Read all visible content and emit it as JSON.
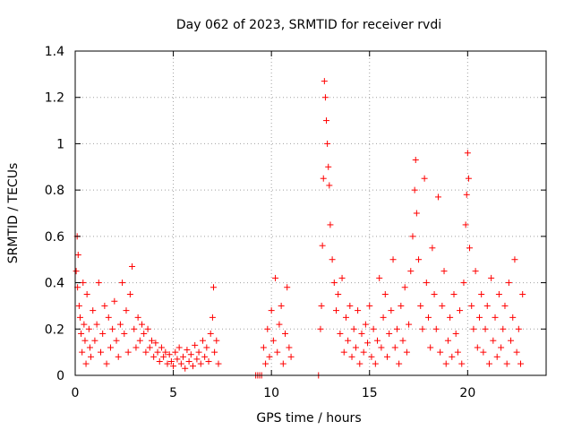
{
  "chart_data": {
    "type": "scatter",
    "title": "Day 062 of 2023, SRMTID for receiver rvdi",
    "xlabel": "GPS time / hours",
    "ylabel": "SRMTID / TECUs",
    "xlim": [
      0,
      24
    ],
    "ylim": [
      0,
      1.4
    ],
    "xticks": [
      0,
      5,
      10,
      15,
      20
    ],
    "xtick_labels": [
      "0",
      "5",
      "10",
      "15",
      "20"
    ],
    "yticks": [
      0,
      0.2,
      0.4,
      0.6,
      0.8,
      1,
      1.2,
      1.4
    ],
    "ytick_labels": [
      "0",
      "0.2",
      "0.4",
      "0.6",
      "0.8",
      "1",
      "1.2",
      "1.4"
    ],
    "grid": true,
    "marker": "+",
    "color": "#ff0000",
    "series": [
      {
        "name": "SRMTID",
        "points": [
          [
            0.05,
            0.45
          ],
          [
            0.1,
            0.6
          ],
          [
            0.12,
            0.38
          ],
          [
            0.15,
            0.52
          ],
          [
            0.2,
            0.3
          ],
          [
            0.25,
            0.25
          ],
          [
            0.3,
            0.18
          ],
          [
            0.35,
            0.1
          ],
          [
            0.4,
            0.4
          ],
          [
            0.45,
            0.22
          ],
          [
            0.5,
            0.15
          ],
          [
            0.55,
            0.05
          ],
          [
            0.6,
            0.35
          ],
          [
            0.7,
            0.2
          ],
          [
            0.75,
            0.12
          ],
          [
            0.8,
            0.08
          ],
          [
            0.9,
            0.28
          ],
          [
            1.0,
            0.15
          ],
          [
            1.1,
            0.22
          ],
          [
            1.2,
            0.4
          ],
          [
            1.3,
            0.1
          ],
          [
            1.4,
            0.18
          ],
          [
            1.5,
            0.3
          ],
          [
            1.6,
            0.05
          ],
          [
            1.7,
            0.25
          ],
          [
            1.8,
            0.12
          ],
          [
            1.9,
            0.2
          ],
          [
            2.0,
            0.32
          ],
          [
            2.1,
            0.15
          ],
          [
            2.2,
            0.08
          ],
          [
            2.3,
            0.22
          ],
          [
            2.4,
            0.4
          ],
          [
            2.5,
            0.18
          ],
          [
            2.6,
            0.28
          ],
          [
            2.7,
            0.1
          ],
          [
            2.8,
            0.35
          ],
          [
            2.9,
            0.47
          ],
          [
            3.0,
            0.2
          ],
          [
            3.1,
            0.12
          ],
          [
            3.2,
            0.25
          ],
          [
            3.3,
            0.15
          ],
          [
            3.4,
            0.22
          ],
          [
            3.5,
            0.18
          ],
          [
            3.6,
            0.1
          ],
          [
            3.7,
            0.2
          ],
          [
            3.8,
            0.12
          ],
          [
            3.9,
            0.15
          ],
          [
            4.0,
            0.08
          ],
          [
            4.1,
            0.14
          ],
          [
            4.2,
            0.1
          ],
          [
            4.3,
            0.06
          ],
          [
            4.4,
            0.12
          ],
          [
            4.5,
            0.08
          ],
          [
            4.6,
            0.1
          ],
          [
            4.7,
            0.05
          ],
          [
            4.8,
            0.09
          ],
          [
            4.9,
            0.06
          ],
          [
            5.0,
            0.04
          ],
          [
            5.1,
            0.1
          ],
          [
            5.2,
            0.07
          ],
          [
            5.3,
            0.12
          ],
          [
            5.4,
            0.05
          ],
          [
            5.5,
            0.08
          ],
          [
            5.6,
            0.03
          ],
          [
            5.7,
            0.11
          ],
          [
            5.8,
            0.06
          ],
          [
            5.9,
            0.09
          ],
          [
            6.0,
            0.04
          ],
          [
            6.1,
            0.13
          ],
          [
            6.2,
            0.07
          ],
          [
            6.3,
            0.1
          ],
          [
            6.4,
            0.05
          ],
          [
            6.5,
            0.15
          ],
          [
            6.6,
            0.08
          ],
          [
            6.7,
            0.12
          ],
          [
            6.8,
            0.06
          ],
          [
            6.9,
            0.18
          ],
          [
            7.0,
            0.25
          ],
          [
            7.05,
            0.38
          ],
          [
            7.1,
            0.1
          ],
          [
            7.2,
            0.15
          ],
          [
            7.3,
            0.05
          ],
          [
            9.2,
            0.0
          ],
          [
            9.3,
            0.0
          ],
          [
            9.4,
            0.0
          ],
          [
            9.5,
            0.0
          ],
          [
            9.6,
            0.12
          ],
          [
            9.7,
            0.05
          ],
          [
            9.8,
            0.2
          ],
          [
            9.9,
            0.08
          ],
          [
            10.0,
            0.28
          ],
          [
            10.1,
            0.15
          ],
          [
            10.2,
            0.42
          ],
          [
            10.3,
            0.1
          ],
          [
            10.4,
            0.22
          ],
          [
            10.5,
            0.3
          ],
          [
            10.6,
            0.05
          ],
          [
            10.7,
            0.18
          ],
          [
            10.8,
            0.38
          ],
          [
            10.9,
            0.12
          ],
          [
            11.0,
            0.08
          ],
          [
            12.4,
            0.0
          ],
          [
            12.5,
            0.2
          ],
          [
            12.55,
            0.3
          ],
          [
            12.6,
            0.56
          ],
          [
            12.65,
            0.85
          ],
          [
            12.7,
            1.27
          ],
          [
            12.75,
            1.2
          ],
          [
            12.8,
            1.1
          ],
          [
            12.85,
            1.0
          ],
          [
            12.9,
            0.9
          ],
          [
            12.95,
            0.82
          ],
          [
            13.0,
            0.65
          ],
          [
            13.1,
            0.5
          ],
          [
            13.2,
            0.4
          ],
          [
            13.3,
            0.28
          ],
          [
            13.4,
            0.35
          ],
          [
            13.5,
            0.18
          ],
          [
            13.6,
            0.42
          ],
          [
            13.7,
            0.1
          ],
          [
            13.8,
            0.25
          ],
          [
            13.9,
            0.15
          ],
          [
            14.0,
            0.3
          ],
          [
            14.1,
            0.08
          ],
          [
            14.2,
            0.2
          ],
          [
            14.3,
            0.12
          ],
          [
            14.4,
            0.28
          ],
          [
            14.5,
            0.05
          ],
          [
            14.6,
            0.18
          ],
          [
            14.7,
            0.1
          ],
          [
            14.8,
            0.22
          ],
          [
            14.9,
            0.14
          ],
          [
            15.0,
            0.3
          ],
          [
            15.1,
            0.08
          ],
          [
            15.2,
            0.2
          ],
          [
            15.3,
            0.05
          ],
          [
            15.4,
            0.15
          ],
          [
            15.5,
            0.42
          ],
          [
            15.6,
            0.12
          ],
          [
            15.7,
            0.25
          ],
          [
            15.8,
            0.35
          ],
          [
            15.9,
            0.08
          ],
          [
            16.0,
            0.18
          ],
          [
            16.1,
            0.28
          ],
          [
            16.2,
            0.5
          ],
          [
            16.3,
            0.12
          ],
          [
            16.4,
            0.2
          ],
          [
            16.5,
            0.05
          ],
          [
            16.6,
            0.3
          ],
          [
            16.7,
            0.15
          ],
          [
            16.8,
            0.38
          ],
          [
            16.9,
            0.1
          ],
          [
            17.0,
            0.22
          ],
          [
            17.1,
            0.45
          ],
          [
            17.2,
            0.6
          ],
          [
            17.3,
            0.8
          ],
          [
            17.35,
            0.93
          ],
          [
            17.4,
            0.7
          ],
          [
            17.5,
            0.5
          ],
          [
            17.6,
            0.3
          ],
          [
            17.7,
            0.2
          ],
          [
            17.8,
            0.85
          ],
          [
            17.9,
            0.4
          ],
          [
            18.0,
            0.25
          ],
          [
            18.1,
            0.12
          ],
          [
            18.2,
            0.55
          ],
          [
            18.3,
            0.35
          ],
          [
            18.4,
            0.2
          ],
          [
            18.5,
            0.77
          ],
          [
            18.6,
            0.1
          ],
          [
            18.7,
            0.3
          ],
          [
            18.8,
            0.45
          ],
          [
            18.9,
            0.05
          ],
          [
            19.0,
            0.15
          ],
          [
            19.1,
            0.25
          ],
          [
            19.2,
            0.08
          ],
          [
            19.3,
            0.35
          ],
          [
            19.4,
            0.18
          ],
          [
            19.5,
            0.1
          ],
          [
            19.6,
            0.28
          ],
          [
            19.7,
            0.05
          ],
          [
            19.8,
            0.4
          ],
          [
            19.9,
            0.65
          ],
          [
            19.95,
            0.78
          ],
          [
            20.0,
            0.96
          ],
          [
            20.05,
            0.85
          ],
          [
            20.1,
            0.55
          ],
          [
            20.2,
            0.3
          ],
          [
            20.3,
            0.2
          ],
          [
            20.4,
            0.45
          ],
          [
            20.5,
            0.12
          ],
          [
            20.6,
            0.25
          ],
          [
            20.7,
            0.35
          ],
          [
            20.8,
            0.1
          ],
          [
            20.9,
            0.2
          ],
          [
            21.0,
            0.3
          ],
          [
            21.1,
            0.05
          ],
          [
            21.2,
            0.42
          ],
          [
            21.3,
            0.15
          ],
          [
            21.4,
            0.25
          ],
          [
            21.5,
            0.08
          ],
          [
            21.6,
            0.35
          ],
          [
            21.7,
            0.12
          ],
          [
            21.8,
            0.2
          ],
          [
            21.9,
            0.3
          ],
          [
            22.0,
            0.05
          ],
          [
            22.1,
            0.4
          ],
          [
            22.2,
            0.15
          ],
          [
            22.3,
            0.25
          ],
          [
            22.4,
            0.5
          ],
          [
            22.5,
            0.1
          ],
          [
            22.6,
            0.2
          ],
          [
            22.7,
            0.05
          ],
          [
            22.8,
            0.35
          ]
        ]
      }
    ]
  }
}
